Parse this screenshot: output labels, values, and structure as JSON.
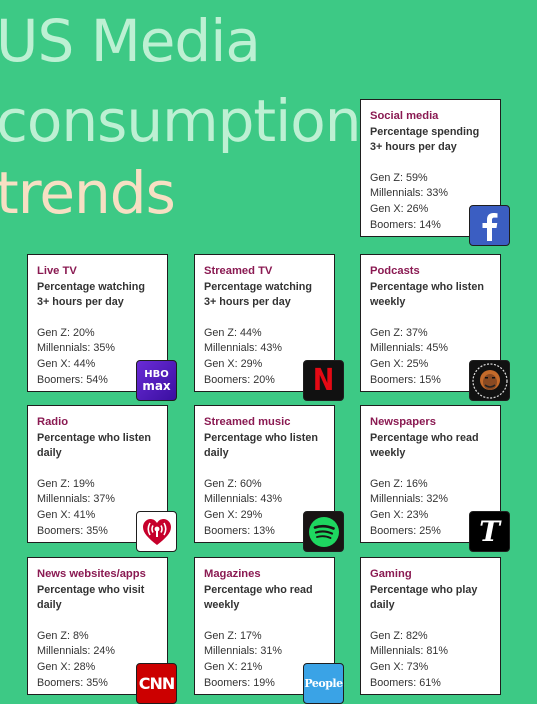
{
  "title": [
    "US Media",
    "consumption",
    "trends"
  ],
  "cards": [
    {
      "name": "social-media",
      "title": "Social media",
      "desc": "Percentage spending 3+ hours per day",
      "stats": [
        "Gen Z: 59%",
        "Millennials: 33%",
        "Gen X: 26%",
        "Boomers: 14%"
      ],
      "logo": "facebook-logo"
    },
    {
      "name": "live-tv",
      "title": "Live TV",
      "desc": "Percentage watching 3+ hours per day",
      "stats": [
        "Gen Z: 20%",
        "Millennials: 35%",
        "Gen X: 44%",
        "Boomers: 54%"
      ],
      "logo": "hbo-max-logo",
      "logo_text": [
        "HBO",
        "max"
      ]
    },
    {
      "name": "streamed-tv",
      "title": "Streamed TV",
      "desc": "Percentage watching 3+ hours per day",
      "stats": [
        "Gen Z: 44%",
        "Millennials: 43%",
        "Gen X: 29%",
        "Boomers: 20%"
      ],
      "logo": "netflix-logo",
      "logo_text": "N"
    },
    {
      "name": "podcasts",
      "title": "Podcasts",
      "desc": "Percentage who listen weekly",
      "stats": [
        "Gen Z: 37%",
        "Millennials: 45%",
        "Gen X: 25%",
        "Boomers: 15%"
      ],
      "logo": "joe-rogan-experience-logo"
    },
    {
      "name": "radio",
      "title": "Radio",
      "desc": "Percentage who listen daily",
      "stats": [
        "Gen Z: 19%",
        "Millennials: 37%",
        "Gen X: 41%",
        "Boomers: 35%"
      ],
      "logo": "iheartradio-logo"
    },
    {
      "name": "streamed-music",
      "title": "Streamed music",
      "desc": "Percentage who listen daily",
      "stats": [
        "Gen Z: 60%",
        "Millennials: 43%",
        "Gen X: 29%",
        "Boomers: 13%"
      ],
      "logo": "spotify-logo"
    },
    {
      "name": "newspapers",
      "title": "Newspapers",
      "desc": "Percentage who read weekly",
      "stats": [
        "Gen Z: 16%",
        "Millennials: 32%",
        "Gen X: 23%",
        "Boomers: 25%"
      ],
      "logo": "new-york-times-logo",
      "logo_text": "T"
    },
    {
      "name": "news-websites",
      "title": "News websites/apps",
      "desc": "Percentage who visit daily",
      "stats": [
        "Gen Z: 8%",
        "Millennials: 24%",
        "Gen X: 28%",
        "Boomers: 35%"
      ],
      "logo": "cnn-logo",
      "logo_text": "CNN"
    },
    {
      "name": "magazines",
      "title": "Magazines",
      "desc": "Percentage who read weekly",
      "stats": [
        "Gen Z: 17%",
        "Millennials: 31%",
        "Gen X: 21%",
        "Boomers: 19%"
      ],
      "logo": "people-logo",
      "logo_text": "People"
    },
    {
      "name": "gaming",
      "title": "Gaming",
      "desc": "Percentage who play daily",
      "stats": [
        "Gen Z: 82%",
        "Millennials: 81%",
        "Gen X: 73%",
        "Boomers: 61%"
      ],
      "logo": null
    }
  ],
  "colors": {
    "background": "#3dc985",
    "title_light": "#bdf0d3",
    "title_peach": "#f7dfc3",
    "card_title": "#8a1a52"
  }
}
